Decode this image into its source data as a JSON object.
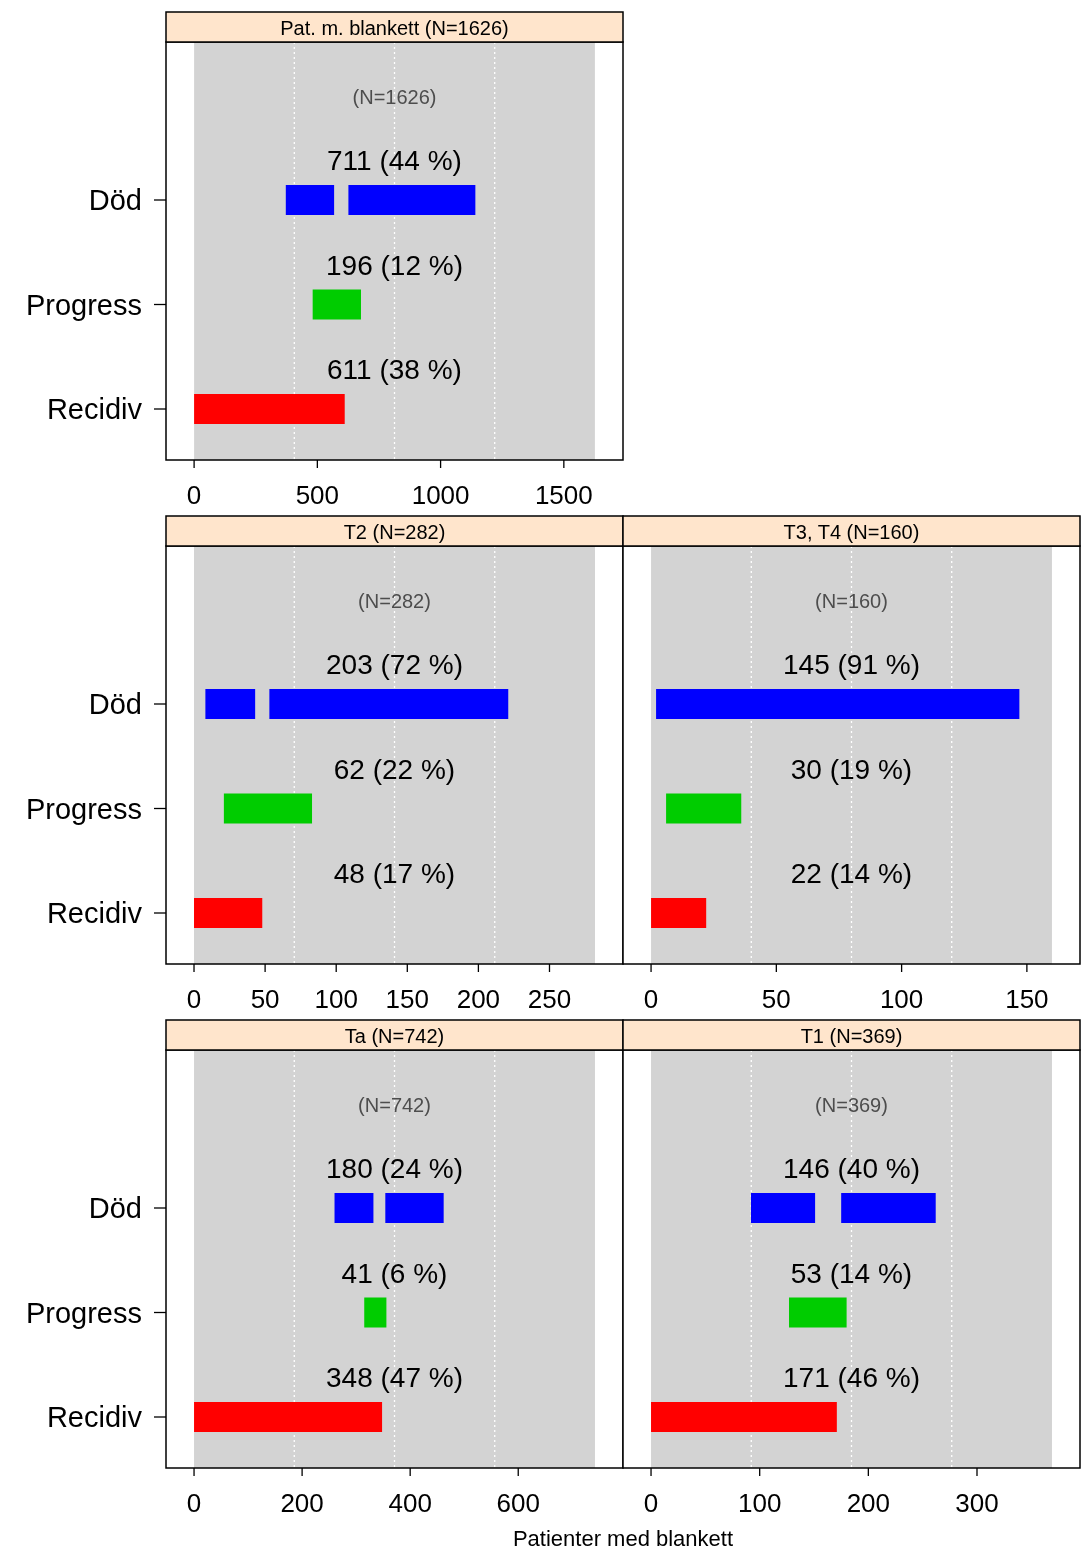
{
  "chart_data": [
    {
      "type": "bar",
      "orientation": "horizontal",
      "title": "Pat. m. blankett (N=1626)",
      "categories": [
        "Död",
        "Progress",
        "Recidiv"
      ],
      "series": [
        {
          "colors": [
            "#0000ff",
            "#00cc00",
            "#ff0000"
          ],
          "values": [
            196,
            196,
            611
          ],
          "base": [
            372,
            481,
            0
          ]
        },
        {
          "color": "#0000ff",
          "values": [
            515,
            null,
            null
          ],
          "base": [
            626,
            null,
            null
          ]
        }
      ],
      "xlim": [
        -114,
        1740
      ],
      "xticks": [
        0,
        500,
        1000,
        1500
      ],
      "bands": [
        {
          "axis": "x",
          "from": 0,
          "to": 1626,
          "color": "#d3d3d3"
        }
      ],
      "ref_lines": [
        {
          "axis": "x",
          "value": 406.5,
          "color": "#ffffff",
          "line_style": "dotted"
        },
        {
          "axis": "x",
          "value": 813,
          "color": "#ffffff",
          "line_style": "dotted"
        },
        {
          "axis": "x",
          "value": 1219.5,
          "color": "#ffffff",
          "line_style": "dotted"
        }
      ],
      "annotations": [
        "(N=1626)",
        {
          "text": "711 (44 %)",
          "x": 813,
          "y": "Död"
        },
        {
          "text": "196 (12 %)",
          "x": 813,
          "y": "Progress"
        },
        {
          "text": "611 (38 %)",
          "x": 813,
          "y": "Recidiv"
        }
      ]
    },
    {
      "type": "bar",
      "orientation": "horizontal",
      "title": "T2 (N=282)",
      "categories": [
        "Död",
        "Progress",
        "Recidiv"
      ],
      "series": [
        {
          "colors": [
            "#0000ff",
            "#00cc00",
            "#ff0000"
          ],
          "values": [
            35,
            62,
            48
          ],
          "base": [
            8,
            21,
            0
          ]
        },
        {
          "color": "#0000ff",
          "values": [
            168,
            null,
            null
          ],
          "base": [
            53,
            null,
            null
          ]
        }
      ],
      "xlim": [
        -19.7,
        301.7
      ],
      "xticks": [
        0,
        50,
        100,
        150,
        200,
        250
      ],
      "bands": [
        {
          "axis": "x",
          "from": 0,
          "to": 282,
          "color": "#d3d3d3"
        }
      ],
      "ref_lines": [
        {
          "axis": "x",
          "value": 70.5,
          "color": "#ffffff",
          "line_style": "dotted"
        },
        {
          "axis": "x",
          "value": 141,
          "color": "#ffffff",
          "line_style": "dotted"
        },
        {
          "axis": "x",
          "value": 211.5,
          "color": "#ffffff",
          "line_style": "dotted"
        }
      ],
      "annotations": [
        "(N=282)",
        {
          "text": "203 (72 %)",
          "x": 141,
          "y": "Död"
        },
        {
          "text": "62 (22 %)",
          "x": 141,
          "y": "Progress"
        },
        {
          "text": "48 (17 %)",
          "x": 141,
          "y": "Recidiv"
        }
      ]
    },
    {
      "type": "bar",
      "orientation": "horizontal",
      "title": "T3, T4 (N=160)",
      "categories": [
        "Död",
        "Progress",
        "Recidiv"
      ],
      "series": [
        {
          "colors": [
            "#0000ff",
            "#00cc00",
            "#ff0000"
          ],
          "values": [
            145,
            30,
            22
          ],
          "base": [
            2,
            6,
            0
          ]
        }
      ],
      "xlim": [
        -11.2,
        171.2
      ],
      "xticks": [
        0,
        50,
        100,
        150
      ],
      "bands": [
        {
          "axis": "x",
          "from": 0,
          "to": 160,
          "color": "#d3d3d3"
        }
      ],
      "ref_lines": [
        {
          "axis": "x",
          "value": 40,
          "color": "#ffffff",
          "line_style": "dotted"
        },
        {
          "axis": "x",
          "value": 80,
          "color": "#ffffff",
          "line_style": "dotted"
        },
        {
          "axis": "x",
          "value": 120,
          "color": "#ffffff",
          "line_style": "dotted"
        }
      ],
      "annotations": [
        "(N=160)",
        {
          "text": "145 (91 %)",
          "x": 80,
          "y": "Död"
        },
        {
          "text": "30 (19 %)",
          "x": 80,
          "y": "Progress"
        },
        {
          "text": "22 (14 %)",
          "x": 80,
          "y": "Recidiv"
        }
      ],
      "tick_labels": "x"
    },
    {
      "type": "bar",
      "orientation": "horizontal",
      "title": "Ta (N=742)",
      "categories": [
        "Död",
        "Progress",
        "Recidiv"
      ],
      "series": [
        {
          "colors": [
            "#0000ff",
            "#00cc00",
            "#ff0000"
          ],
          "values": [
            72,
            41,
            348
          ],
          "base": [
            260,
            315,
            0
          ]
        },
        {
          "color": "#0000ff",
          "values": [
            108,
            null,
            null
          ],
          "base": [
            354,
            null,
            null
          ]
        }
      ],
      "xlim": [
        -51.9,
        793.9
      ],
      "xticks": [
        0,
        200,
        400,
        600
      ],
      "bands": [
        {
          "axis": "x",
          "from": 0,
          "to": 742,
          "color": "#d3d3d3"
        }
      ],
      "ref_lines": [
        {
          "axis": "x",
          "value": 185.5,
          "color": "#ffffff",
          "line_style": "dotted"
        },
        {
          "axis": "x",
          "value": 371,
          "color": "#ffffff",
          "line_style": "dotted"
        },
        {
          "axis": "x",
          "value": 556.5,
          "color": "#ffffff",
          "line_style": "dotted"
        }
      ],
      "annotations": [
        "(N=742)",
        {
          "text": "180 (24 %)",
          "x": 371,
          "y": "Död"
        },
        {
          "text": "41 (6 %)",
          "x": 371,
          "y": "Progress"
        },
        {
          "text": "348 (47 %)",
          "x": 371,
          "y": "Recidiv"
        }
      ],
      "xlabel": "Patienter med blankett"
    },
    {
      "type": "bar",
      "orientation": "horizontal",
      "title": "T1 (N=369)",
      "categories": [
        "Död",
        "Progress",
        "Recidiv"
      ],
      "series": [
        {
          "colors": [
            "#0000ff",
            "#00cc00",
            "#ff0000"
          ],
          "values": [
            59,
            53,
            171
          ],
          "base": [
            92,
            127,
            0
          ]
        },
        {
          "color": "#0000ff",
          "values": [
            87,
            null,
            null
          ],
          "base": [
            175,
            null,
            null
          ]
        }
      ],
      "xlim": [
        -25.8,
        394.8
      ],
      "xticks": [
        0,
        100,
        200,
        300
      ],
      "bands": [
        {
          "axis": "x",
          "from": 0,
          "to": 369,
          "color": "#d3d3d3"
        }
      ],
      "ref_lines": [
        {
          "axis": "x",
          "value": 92.25,
          "color": "#ffffff",
          "line_style": "dotted"
        },
        {
          "axis": "x",
          "value": 184.5,
          "color": "#ffffff",
          "line_style": "dotted"
        },
        {
          "axis": "x",
          "value": 276.75,
          "color": "#ffffff",
          "line_style": "dotted"
        }
      ],
      "annotations": [
        "(N=369)",
        {
          "text": "146 (40 %)",
          "x": 184.5,
          "y": "Död"
        },
        {
          "text": "53 (14 %)",
          "x": 184.5,
          "y": "Progress"
        },
        {
          "text": "171 (46 %)",
          "x": 184.5,
          "y": "Recidiv"
        }
      ],
      "tick_labels": "x"
    }
  ]
}
